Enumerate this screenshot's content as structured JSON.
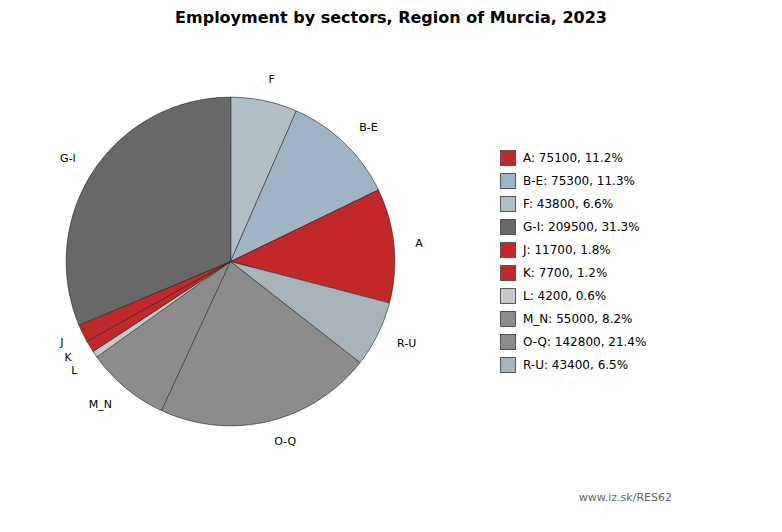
{
  "chart_data": {
    "type": "pie",
    "title": "Employment by sectors, Region of Murcia, 2023",
    "categories": [
      "F",
      "B-E",
      "A",
      "R-U",
      "O-Q",
      "M_N",
      "L",
      "K",
      "J",
      "G-I"
    ],
    "values": [
      43800,
      75300,
      75100,
      43400,
      142800,
      55000,
      4200,
      7700,
      11700,
      209500
    ],
    "colors": [
      "#b0bec8",
      "#9fb4c4",
      "#c0282a",
      "#a8b4bc",
      "#8c8c8c",
      "#8c8c8c",
      "#c8c8c8",
      "#c0282a",
      "#c0282a",
      "#686868"
    ],
    "data_labels": false,
    "legend": "right",
    "legend_entries": [
      {
        "name": "A",
        "label": "A: 75100, 11.2%"
      },
      {
        "name": "B-E",
        "label": "B-E: 75300, 11.3%"
      },
      {
        "name": "F",
        "label": "F: 43800, 6.6%"
      },
      {
        "name": "G-I",
        "label": "G-I: 209500, 31.3%"
      },
      {
        "name": "J",
        "label": "J: 11700, 1.8%"
      },
      {
        "name": "K",
        "label": "K: 7700, 1.2%"
      },
      {
        "name": "L",
        "label": "L: 4200, 0.6%"
      },
      {
        "name": "M_N",
        "label": "M_N: 55000, 8.2%"
      },
      {
        "name": "O-Q",
        "label": "O-Q: 142800, 21.4%"
      },
      {
        "name": "R-U",
        "label": "R-U: 43400, 6.5%"
      }
    ],
    "annotations": [
      "www.iz.sk/RES62"
    ]
  }
}
